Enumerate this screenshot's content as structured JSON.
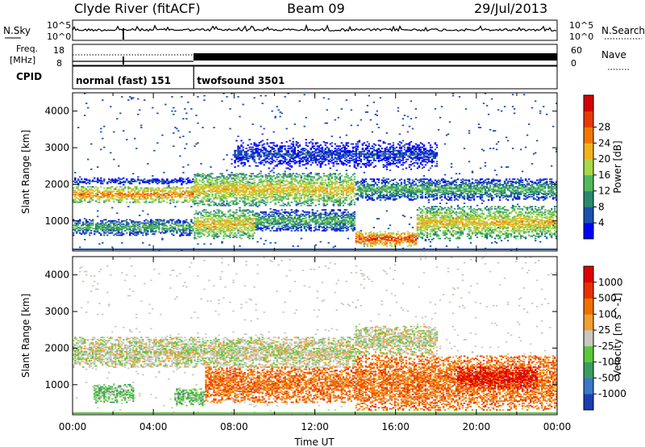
{
  "header": {
    "station": "Clyde River (fitACF)",
    "beam": "Beam 09",
    "date": "29/Jul/2013"
  },
  "summary_panels": {
    "nsky_label": "N.Sky",
    "nsearch_label": "N.Search",
    "freq_label_1": "Freq.",
    "freq_label_2": "[MHz]",
    "nave_label": "Nave",
    "cpid_label": "CPID",
    "nsky_ticks": [
      "10^5",
      "10^0"
    ],
    "nsearch_ticks": [
      "10^5",
      "10^0"
    ],
    "freq_ticks": [
      "18",
      "8"
    ],
    "nave_ticks": [
      "60",
      "0"
    ],
    "cpid_modes": [
      {
        "name": "normal (fast) 151",
        "start_hour": 0,
        "end_hour": 6
      },
      {
        "name": "twofsound 3501",
        "start_hour": 6,
        "end_hour": 24
      }
    ]
  },
  "chart_data": [
    {
      "type": "heatmap",
      "name": "power-panel",
      "x": [
        0,
        1,
        2,
        3,
        4,
        5,
        6,
        7,
        8,
        9,
        10,
        11,
        12,
        13,
        14,
        15,
        16,
        17,
        18,
        19,
        20,
        21,
        22,
        23
      ],
      "ylabel": "Slant Range [km]",
      "xlim": [
        0,
        24
      ],
      "ylim": [
        180,
        4500
      ],
      "yticks": [
        "1000",
        "2000",
        "3000",
        "4000"
      ],
      "colorbar": {
        "label": "Power [dB]",
        "ticks": [
          "4",
          "8",
          "12",
          "16",
          "20",
          "24",
          "28"
        ],
        "colors": [
          "#0000ff",
          "#1c4fb0",
          "#2a8a6e",
          "#52b860",
          "#a8d84a",
          "#f2b21c",
          "#f07800",
          "#e83a00",
          "#d80000"
        ]
      },
      "bands": [
        {
          "t0": 0,
          "t1": 6,
          "r0": 1500,
          "r1": 1950,
          "level": 7
        },
        {
          "t0": 0,
          "t1": 6,
          "r0": 1950,
          "r1": 2200,
          "level": 2
        },
        {
          "t0": 0,
          "t1": 6,
          "r0": 600,
          "r1": 1050,
          "level": 4
        },
        {
          "t0": 6,
          "t1": 14,
          "r0": 1400,
          "r1": 2300,
          "level": 6
        },
        {
          "t0": 6,
          "t1": 9,
          "r0": 500,
          "r1": 1300,
          "level": 6
        },
        {
          "t0": 9,
          "t1": 14,
          "r0": 700,
          "r1": 1300,
          "level": 4
        },
        {
          "t0": 14,
          "t1": 24,
          "r0": 1550,
          "r1": 2150,
          "level": 4
        },
        {
          "t0": 14,
          "t1": 17,
          "r0": 300,
          "r1": 700,
          "level": 8
        },
        {
          "t0": 17,
          "t1": 24,
          "r0": 500,
          "r1": 1400,
          "level": 6
        },
        {
          "t0": 8,
          "t1": 18,
          "r0": 2300,
          "r1": 3300,
          "level": 2
        }
      ]
    },
    {
      "type": "heatmap",
      "name": "velocity-panel",
      "x": [
        0,
        1,
        2,
        3,
        4,
        5,
        6,
        7,
        8,
        9,
        10,
        11,
        12,
        13,
        14,
        15,
        16,
        17,
        18,
        19,
        20,
        21,
        22,
        23
      ],
      "xlabel": "Time UT",
      "ylabel": "Slant Range [km]",
      "xlim": [
        0,
        24
      ],
      "ylim": [
        180,
        4500
      ],
      "xticks": [
        "00:00",
        "04:00",
        "08:00",
        "12:00",
        "16:00",
        "20:00",
        "00:00"
      ],
      "yticks": [
        "1000",
        "2000",
        "3000",
        "4000"
      ],
      "colorbar": {
        "label": "Velocity [m s^-1]",
        "ticks": [
          "1000",
          "500",
          "100",
          "25",
          "-25",
          "-100",
          "-500",
          "-1000"
        ],
        "colors": [
          "#1a3fb0",
          "#3a78c8",
          "#3c9c60",
          "#5cc83c",
          "#c8c8c0",
          "#f0a030",
          "#f07000",
          "#e83000",
          "#e00000"
        ]
      },
      "bands": [
        {
          "t0": 0,
          "t1": 14,
          "r0": 1450,
          "r1": 2300,
          "level": 4
        },
        {
          "t0": 14,
          "t1": 18,
          "r0": 1800,
          "r1": 2600,
          "level": 4
        },
        {
          "t0": 1,
          "t1": 3,
          "r0": 500,
          "r1": 1000,
          "level": 3
        },
        {
          "t0": 5,
          "t1": 6.5,
          "r0": 400,
          "r1": 900,
          "level": 3
        },
        {
          "t0": 6.5,
          "t1": 14,
          "r0": 500,
          "r1": 1500,
          "level": 6
        },
        {
          "t0": 14,
          "t1": 24,
          "r0": 300,
          "r1": 1800,
          "level": 6
        },
        {
          "t0": 19,
          "t1": 23,
          "r0": 900,
          "r1": 1500,
          "level": 8
        }
      ]
    }
  ]
}
